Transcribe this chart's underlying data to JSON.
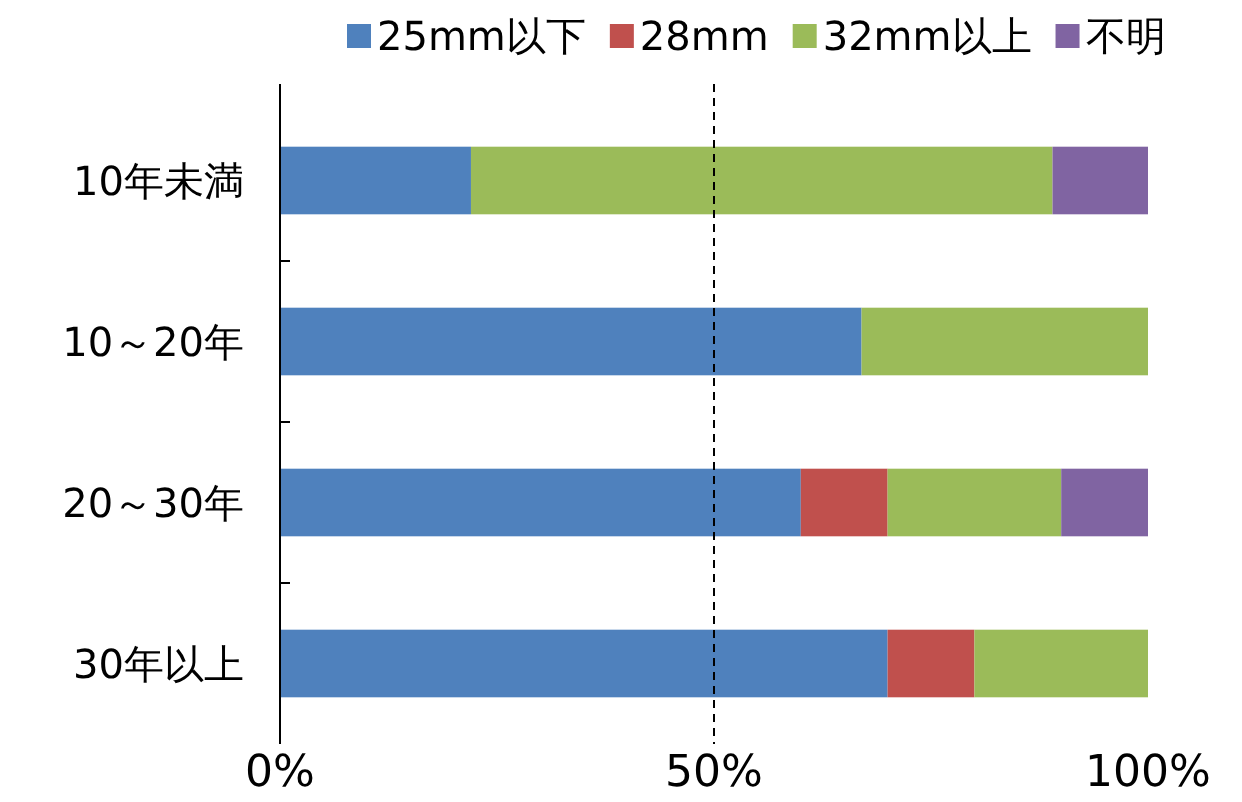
{
  "chart_data": {
    "type": "bar",
    "orientation": "horizontal",
    "stacked": true,
    "categories": [
      "10年未満",
      "10～20年",
      "20～30年",
      "30年以上"
    ],
    "series": [
      {
        "name": "25mm以下",
        "color": "#4f81bd",
        "values": [
          22,
          67,
          60,
          70
        ]
      },
      {
        "name": "28mm",
        "color": "#c0504d",
        "values": [
          null,
          null,
          10,
          10
        ]
      },
      {
        "name": "32mm以上",
        "color": "#9bbb59",
        "values": [
          67,
          33,
          20,
          20
        ]
      },
      {
        "name": "不明",
        "color": "#8064a2",
        "values": [
          11,
          null,
          10,
          null
        ]
      }
    ],
    "xlim": [
      0,
      100
    ],
    "xticks": [
      {
        "value": 0,
        "label": "0%"
      },
      {
        "value": 50,
        "label": "50%"
      },
      {
        "value": 100,
        "label": "100%"
      }
    ],
    "ref_lines": [
      {
        "axis": "x",
        "value": 50,
        "color": "#000000",
        "line_style": "dashed"
      }
    ],
    "grid": false,
    "legend": "top"
  }
}
